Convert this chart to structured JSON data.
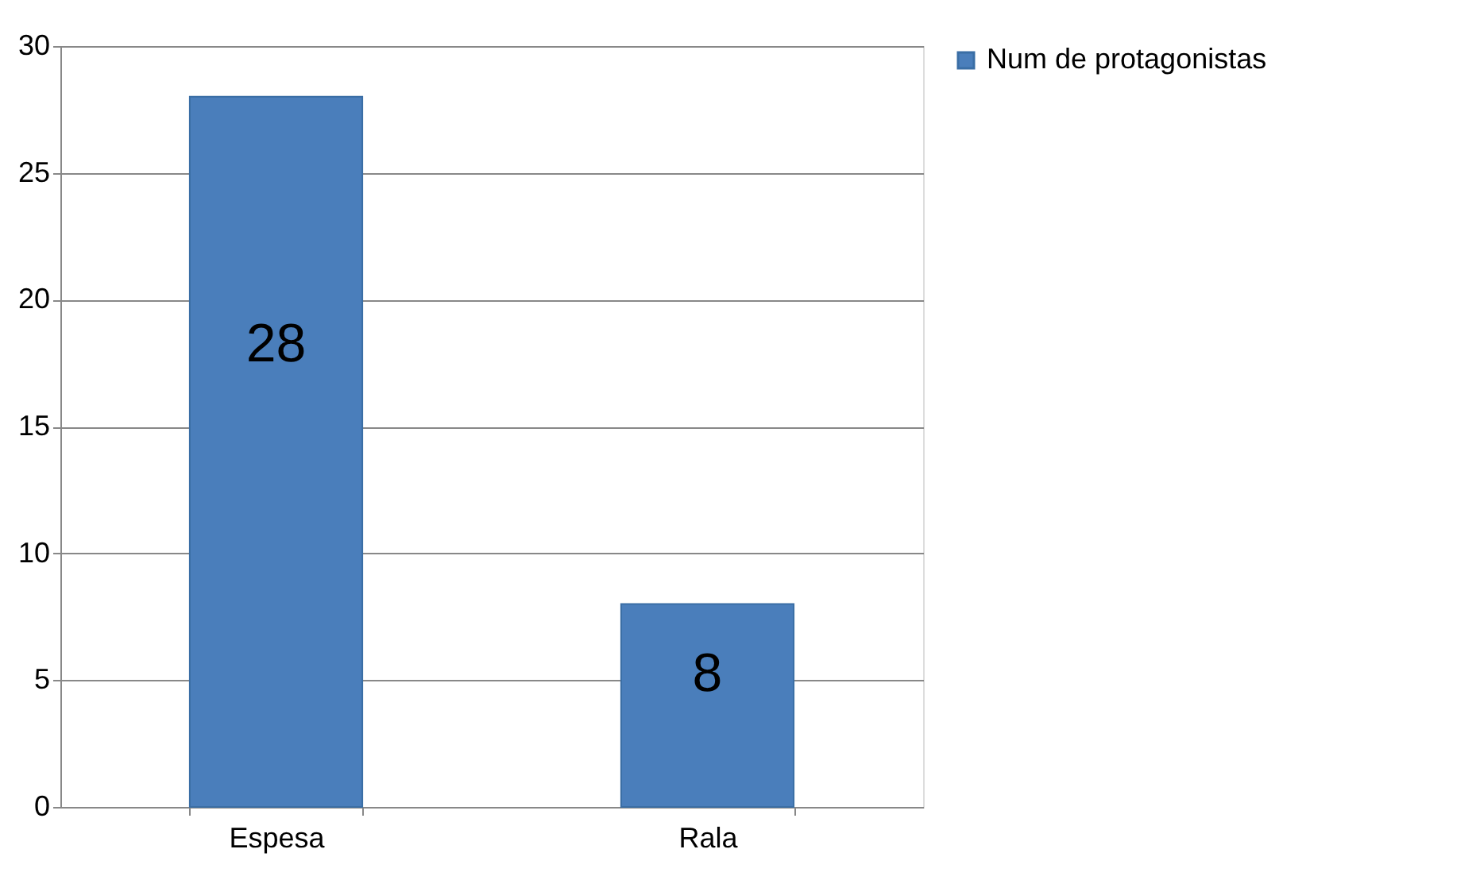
{
  "chart_data": {
    "type": "bar",
    "categories": [
      "Espesa",
      "Rala"
    ],
    "series": [
      {
        "name": "Num de protagonistas",
        "color": "#4a7ebb",
        "values": [
          28,
          8
        ]
      }
    ],
    "ylim": [
      0,
      30
    ],
    "yticks": [
      0,
      5,
      10,
      15,
      20,
      25,
      30
    ],
    "grid": "y",
    "legend": "right",
    "data_labels": true
  }
}
